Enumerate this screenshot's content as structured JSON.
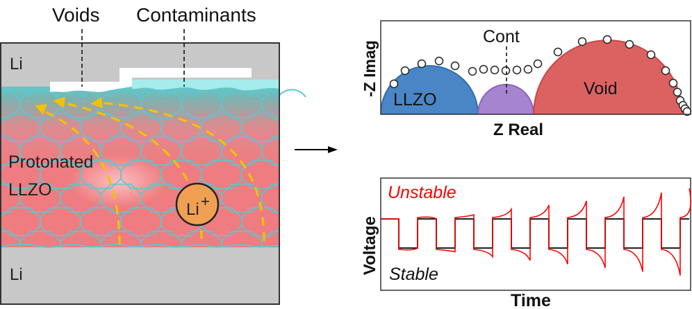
{
  "left_panel": {
    "top_electrode_label": "Li",
    "bottom_electrode_label": "Li",
    "voids_label": "Voids",
    "contaminants_label": "Contaminants",
    "electrolyte_label_line1": "Protonated",
    "electrolyte_label_line2": "LLZO",
    "ion_label": "Li",
    "ion_charge": "+",
    "colors": {
      "lithium": "#c8c8c8",
      "llzo_grain": "#ef7c80",
      "grain_border": "#5ec6cf",
      "protonated_surface": "#7fb0b0",
      "contaminant": "#a6ecec",
      "void": "#ffffff",
      "ion": "#f0a052",
      "diffusion_path": "#f2c200"
    }
  },
  "transition_arrow_icon": "right-arrow-icon",
  "impedance_plot": {
    "ylabel": "-Z Imag",
    "xlabel": "Z Real",
    "arc_labels": [
      "LLZO",
      "Cont",
      "Void"
    ],
    "colors": {
      "llzo": "#4a86c5",
      "cont": "#a784d0",
      "void": "#dc6262"
    }
  },
  "voltage_plot": {
    "ylabel": "Voltage",
    "xlabel": "Time",
    "unstable_label": "Unstable",
    "stable_label": "Stable",
    "colors": {
      "unstable": "#ff0000",
      "stable": "#000000"
    }
  }
}
